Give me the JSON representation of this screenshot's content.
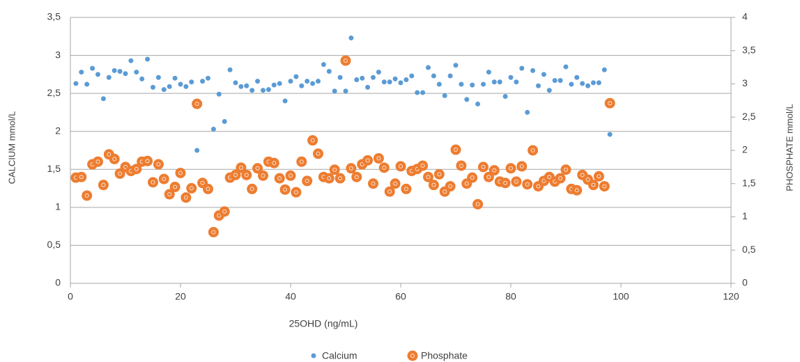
{
  "chart_data": {
    "type": "scatter",
    "xlabel": "25OHD (ng/mL)",
    "ylabel": "CALCIUM mmol/L",
    "y2label": "PHOSPHATE mmol/L",
    "x": [
      1,
      2,
      3,
      4,
      5,
      6,
      7,
      8,
      9,
      10,
      11,
      12,
      13,
      14,
      15,
      16,
      17,
      18,
      19,
      20,
      21,
      22,
      23,
      24,
      25,
      26,
      27,
      28,
      29,
      30,
      31,
      32,
      33,
      34,
      35,
      36,
      37,
      38,
      39,
      40,
      41,
      42,
      43,
      44,
      45,
      46,
      47,
      48,
      49,
      50,
      51,
      52,
      53,
      54,
      55,
      56,
      57,
      58,
      59,
      60,
      61,
      62,
      63,
      64,
      65,
      66,
      67,
      68,
      69,
      70,
      71,
      72,
      73,
      74,
      75,
      76,
      77,
      78,
      79,
      80,
      81,
      82,
      83,
      84,
      85,
      86,
      87,
      88,
      89,
      90,
      91,
      92,
      93,
      94,
      95,
      96,
      97,
      98
    ],
    "series": [
      {
        "name": "Calcium",
        "color": "#5b9bd5",
        "axis": "y",
        "values": [
          2.63,
          2.78,
          2.62,
          2.83,
          2.75,
          2.43,
          2.71,
          2.8,
          2.79,
          2.76,
          2.93,
          2.78,
          2.69,
          2.95,
          2.58,
          2.71,
          2.55,
          2.59,
          2.7,
          2.62,
          2.59,
          2.65,
          1.75,
          2.66,
          2.7,
          2.03,
          2.49,
          2.13,
          2.81,
          2.64,
          2.59,
          2.6,
          2.54,
          2.66,
          2.54,
          2.55,
          2.61,
          2.63,
          2.4,
          2.66,
          2.72,
          2.6,
          2.66,
          2.63,
          2.66,
          2.88,
          2.79,
          2.53,
          2.71,
          2.53,
          3.23,
          2.68,
          2.7,
          2.58,
          2.71,
          2.78,
          2.65,
          2.65,
          2.69,
          2.64,
          2.68,
          2.73,
          2.51,
          2.51,
          2.84,
          2.73,
          2.62,
          2.47,
          2.73,
          2.87,
          2.62,
          2.42,
          2.61,
          2.36,
          2.62,
          2.78,
          2.65,
          2.65,
          2.46,
          2.71,
          2.65,
          2.83,
          2.25,
          2.8,
          2.6,
          2.75,
          2.54,
          2.67,
          2.67,
          2.85,
          2.62,
          2.71,
          2.63,
          2.6,
          2.64,
          2.64,
          2.81,
          1.96
        ]
      },
      {
        "name": "Phosphate",
        "color": "#ed7d31",
        "axis": "y2",
        "values": [
          1.59,
          1.6,
          1.32,
          1.79,
          1.83,
          1.48,
          1.94,
          1.87,
          1.65,
          1.75,
          1.69,
          1.72,
          1.83,
          1.84,
          1.52,
          1.79,
          1.57,
          1.34,
          1.45,
          1.66,
          1.29,
          1.43,
          2.7,
          1.51,
          1.42,
          0.77,
          1.02,
          1.08,
          1.59,
          1.63,
          1.74,
          1.63,
          1.42,
          1.73,
          1.62,
          1.83,
          1.81,
          1.58,
          1.41,
          1.62,
          1.37,
          1.83,
          1.54,
          2.15,
          1.95,
          1.6,
          1.58,
          1.71,
          1.58,
          3.35,
          1.73,
          1.6,
          1.79,
          1.85,
          1.5,
          1.88,
          1.74,
          1.38,
          1.5,
          1.76,
          1.42,
          1.69,
          1.72,
          1.77,
          1.6,
          1.48,
          1.64,
          1.38,
          1.46,
          2.01,
          1.77,
          1.5,
          1.59,
          1.19,
          1.75,
          1.6,
          1.7,
          1.53,
          1.51,
          1.73,
          1.53,
          1.76,
          1.49,
          2.0,
          1.46,
          1.54,
          1.6,
          1.53,
          1.58,
          1.71,
          1.42,
          1.4,
          1.63,
          1.56,
          1.48,
          1.61,
          1.46,
          2.71
        ]
      }
    ],
    "xlim": [
      0,
      120
    ],
    "xticks": [
      0,
      20,
      40,
      60,
      80,
      100,
      120
    ],
    "ylim": [
      0,
      3.5
    ],
    "yticks": [
      0,
      {
        "value": 0.5,
        "label": "0,5"
      },
      1,
      {
        "value": 1.5,
        "label": "1,5"
      },
      2,
      {
        "value": 2.5,
        "label": "2,5"
      },
      3,
      {
        "value": 3.5,
        "label": "3,5"
      }
    ],
    "y2lim": [
      0,
      4
    ],
    "y2ticks": [
      0,
      {
        "value": 0.5,
        "label": "0,5"
      },
      1,
      {
        "value": 1.5,
        "label": "1,5"
      },
      2,
      {
        "value": 2.5,
        "label": "2,5"
      },
      3,
      {
        "value": 3.5,
        "label": "3,5"
      },
      4
    ],
    "grid": true,
    "legend": "bottom"
  }
}
